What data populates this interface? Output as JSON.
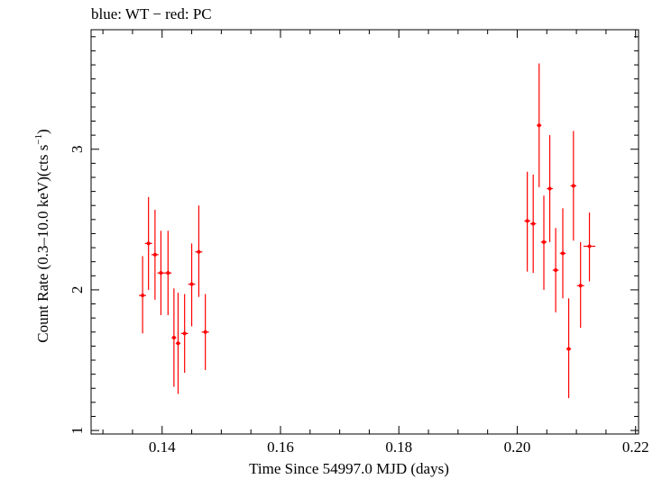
{
  "chart_data": {
    "type": "scatter",
    "title": "blue: WT − red: PC",
    "xlabel": "Time Since 54997.0 MJD (days)",
    "ylabel_main": "Count Rate (0.3–10.0 keV)(cts s",
    "ylabel_sup": "−1",
    "ylabel_close": ")",
    "xlim": [
      0.128,
      0.2205
    ],
    "ylim": [
      0.975,
      3.85
    ],
    "xticks": [
      {
        "value": 0.14,
        "label": "0.14"
      },
      {
        "value": 0.16,
        "label": "0.16"
      },
      {
        "value": 0.18,
        "label": "0.18"
      },
      {
        "value": 0.2,
        "label": "0.20"
      },
      {
        "value": 0.22,
        "label": "0.22"
      }
    ],
    "yticks": [
      {
        "value": 1,
        "label": "1"
      },
      {
        "value": 2,
        "label": "2"
      },
      {
        "value": 3,
        "label": "3"
      }
    ],
    "series": [
      {
        "name": "PC",
        "color": "#ff0000",
        "points": [
          {
            "x": 0.1367,
            "y": 1.96,
            "ylo": 1.69,
            "yhi": 2.24,
            "xerr": 0.0006
          },
          {
            "x": 0.1377,
            "y": 2.33,
            "ylo": 2.0,
            "yhi": 2.66,
            "xerr": 0.0006
          },
          {
            "x": 0.1388,
            "y": 2.25,
            "ylo": 1.93,
            "yhi": 2.57,
            "xerr": 0.0006
          },
          {
            "x": 0.1398,
            "y": 2.12,
            "ylo": 1.82,
            "yhi": 2.42,
            "xerr": 0.0006
          },
          {
            "x": 0.141,
            "y": 2.12,
            "ylo": 1.82,
            "yhi": 2.42,
            "xerr": 0.0006
          },
          {
            "x": 0.142,
            "y": 1.66,
            "ylo": 1.31,
            "yhi": 2.01,
            "xerr": 0.0004
          },
          {
            "x": 0.1427,
            "y": 1.62,
            "ylo": 1.26,
            "yhi": 1.98,
            "xerr": 0.0004
          },
          {
            "x": 0.1438,
            "y": 1.69,
            "ylo": 1.41,
            "yhi": 1.97,
            "xerr": 0.0006
          },
          {
            "x": 0.145,
            "y": 2.04,
            "ylo": 1.74,
            "yhi": 2.33,
            "xerr": 0.0006
          },
          {
            "x": 0.1462,
            "y": 2.27,
            "ylo": 1.95,
            "yhi": 2.6,
            "xerr": 0.0006
          },
          {
            "x": 0.1473,
            "y": 1.7,
            "ylo": 1.43,
            "yhi": 1.97,
            "xerr": 0.0006
          },
          {
            "x": 0.2017,
            "y": 2.49,
            "ylo": 2.13,
            "yhi": 2.84,
            "xerr": 0.0005
          },
          {
            "x": 0.2027,
            "y": 2.47,
            "ylo": 2.12,
            "yhi": 2.82,
            "xerr": 0.0005
          },
          {
            "x": 0.2037,
            "y": 3.17,
            "ylo": 2.73,
            "yhi": 3.61,
            "xerr": 0.0004
          },
          {
            "x": 0.2045,
            "y": 2.34,
            "ylo": 2.0,
            "yhi": 2.67,
            "xerr": 0.0005
          },
          {
            "x": 0.2055,
            "y": 2.72,
            "ylo": 2.34,
            "yhi": 3.1,
            "xerr": 0.0005
          },
          {
            "x": 0.2065,
            "y": 2.14,
            "ylo": 1.84,
            "yhi": 2.44,
            "xerr": 0.0005
          },
          {
            "x": 0.2077,
            "y": 2.26,
            "ylo": 1.94,
            "yhi": 2.58,
            "xerr": 0.0005
          },
          {
            "x": 0.2087,
            "y": 1.58,
            "ylo": 1.23,
            "yhi": 1.94,
            "xerr": 0.0004
          },
          {
            "x": 0.2095,
            "y": 2.74,
            "ylo": 2.35,
            "yhi": 3.13,
            "xerr": 0.0005
          },
          {
            "x": 0.2107,
            "y": 2.03,
            "ylo": 1.73,
            "yhi": 2.34,
            "xerr": 0.0006
          },
          {
            "x": 0.2122,
            "y": 2.31,
            "ylo": 2.06,
            "yhi": 2.55,
            "xerr": 0.001
          }
        ]
      }
    ]
  }
}
